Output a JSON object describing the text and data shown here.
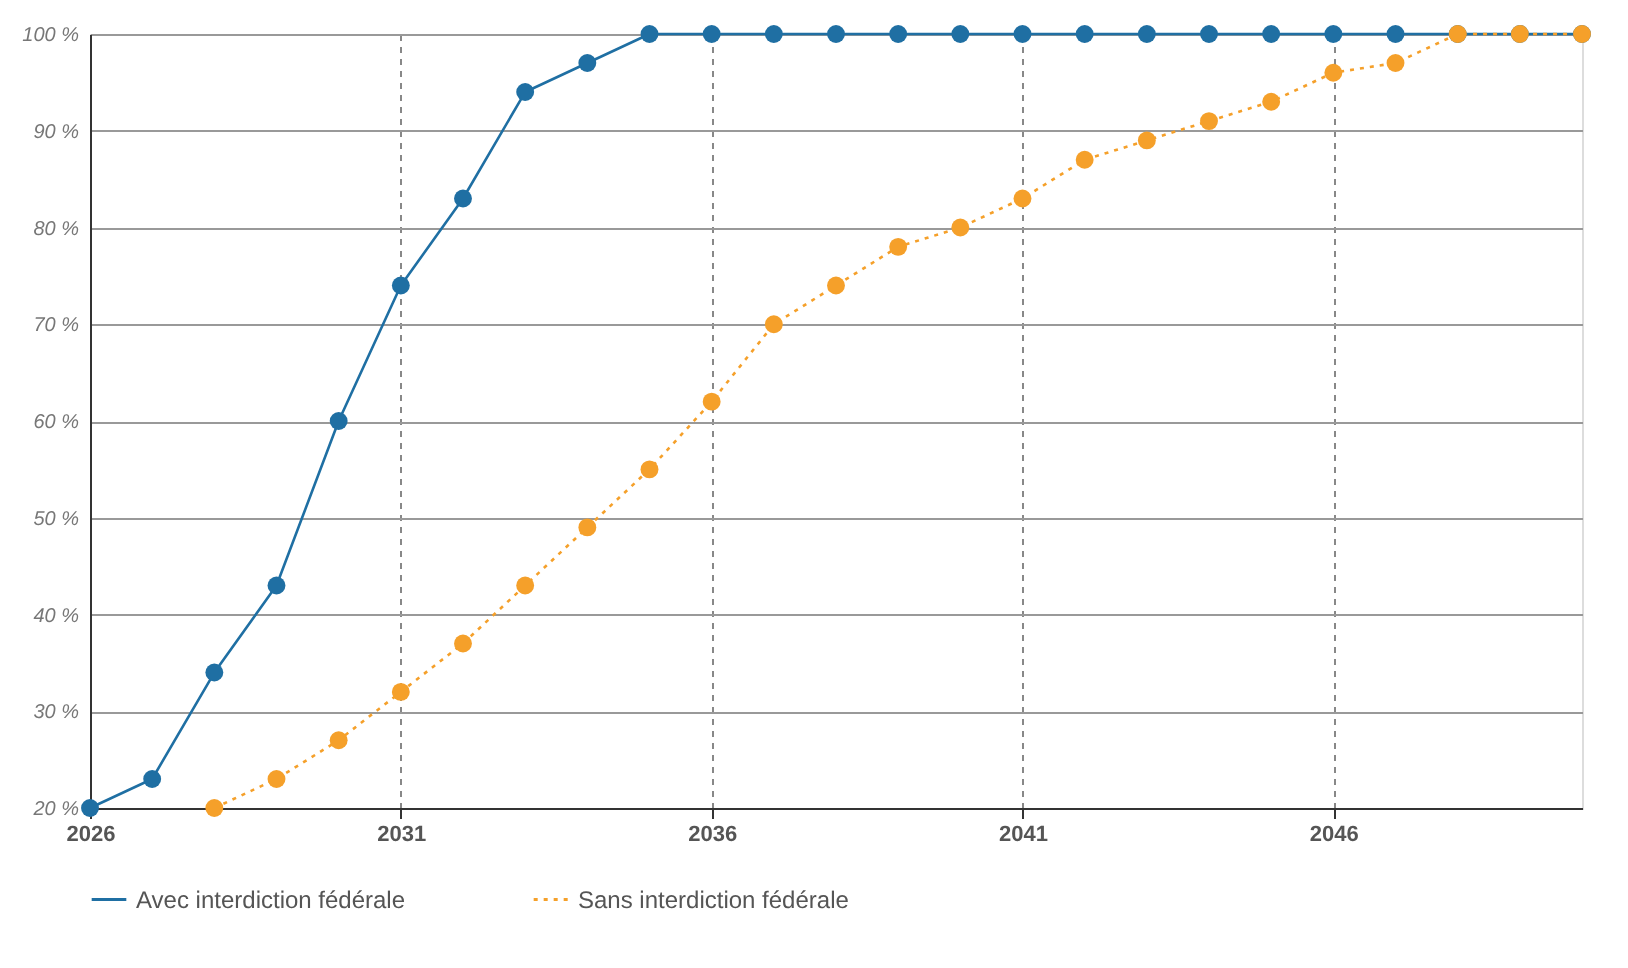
{
  "chart_data": {
    "type": "line",
    "x": [
      2026,
      2027,
      2028,
      2029,
      2030,
      2031,
      2032,
      2033,
      2034,
      2035,
      2036,
      2037,
      2038,
      2039,
      2040,
      2041,
      2042,
      2043,
      2044,
      2045,
      2046,
      2047,
      2048,
      2049,
      2050
    ],
    "series": [
      {
        "name": "Avec interdiction fédérale",
        "color": "#1f6fa3",
        "line_style": "solid",
        "values": [
          20,
          23,
          34,
          43,
          60,
          74,
          83,
          94,
          97,
          100,
          100,
          100,
          100,
          100,
          100,
          100,
          100,
          100,
          100,
          100,
          100,
          100,
          100,
          100,
          100
        ]
      },
      {
        "name": "Sans interdiction fédérale",
        "color": "#f5a02a",
        "line_style": "dotted",
        "values": [
          null,
          null,
          20,
          23,
          27,
          32,
          37,
          43,
          49,
          55,
          62,
          70,
          74,
          78,
          80,
          83,
          87,
          89,
          91,
          93,
          96,
          97,
          100,
          100,
          100
        ]
      }
    ],
    "xlim": [
      2026,
      2050
    ],
    "xticks": [
      2026,
      2031,
      2036,
      2041,
      2046
    ],
    "ylim": [
      20,
      100
    ],
    "yticks": [
      {
        "value": 20,
        "label": "20 %"
      },
      {
        "value": 30,
        "label": "30 %"
      },
      {
        "value": 40,
        "label": "40 %"
      },
      {
        "value": 50,
        "label": "50 %"
      },
      {
        "value": 60,
        "label": "60 %"
      },
      {
        "value": 70,
        "label": "70 %"
      },
      {
        "value": 80,
        "label": "80 %"
      },
      {
        "value": 90,
        "label": "90 %"
      },
      {
        "value": 100,
        "label": "100 %"
      }
    ],
    "grid": true,
    "legend": "bottom",
    "marker": "circle"
  }
}
